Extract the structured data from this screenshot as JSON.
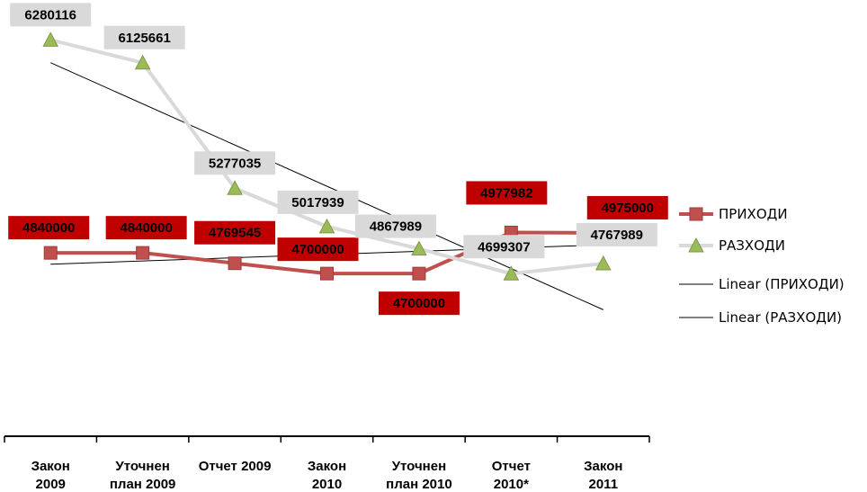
{
  "chart_data": {
    "type": "line",
    "title": "",
    "xlabel": "",
    "ylabel": "",
    "categories": [
      [
        "Закон",
        "2009"
      ],
      [
        "Уточнен",
        "план 2009"
      ],
      [
        "Отчет 2009"
      ],
      [
        "Закон",
        "2010"
      ],
      [
        "Уточнен",
        "план 2010"
      ],
      [
        "Отчет",
        "2010*"
      ],
      [
        "Закон",
        "2011"
      ]
    ],
    "series": [
      {
        "name": "ПРИХОДИ",
        "values": [
          4840000,
          4840000,
          4769545,
          4700000,
          4700000,
          4977982,
          4975000
        ],
        "labels": [
          "4840000",
          "4840000",
          "4769545",
          "4700000",
          "4700000",
          "4977982",
          "4975000"
        ],
        "color": "#c0504d",
        "marker": "square",
        "label_bg": "#c00000",
        "label_color": "#000000"
      },
      {
        "name": "РАЗХОДИ",
        "values": [
          6280116,
          6125661,
          5277035,
          5017939,
          4867989,
          4699307,
          4767989
        ],
        "labels": [
          "6280116",
          "6125661",
          "5277035",
          "5017939",
          "4867989",
          "4699307",
          "4767989"
        ],
        "color": "#d9d9d9",
        "marker": "triangle",
        "marker_color": "#9bbb59",
        "label_bg": "#d9d9d9",
        "label_color": "#000000"
      }
    ],
    "trendlines": [
      {
        "name": "Linear (ПРИХОДИ)",
        "of": "ПРИХОДИ",
        "type": "linear",
        "color": "#000000"
      },
      {
        "name": "Linear (РАЗХОДИ)",
        "of": "РАЗХОДИ",
        "type": "linear",
        "color": "#000000"
      }
    ],
    "ylim": [
      3600000,
      6550000
    ],
    "y_axis_visible": false,
    "grid": false,
    "legend_position": "right"
  }
}
